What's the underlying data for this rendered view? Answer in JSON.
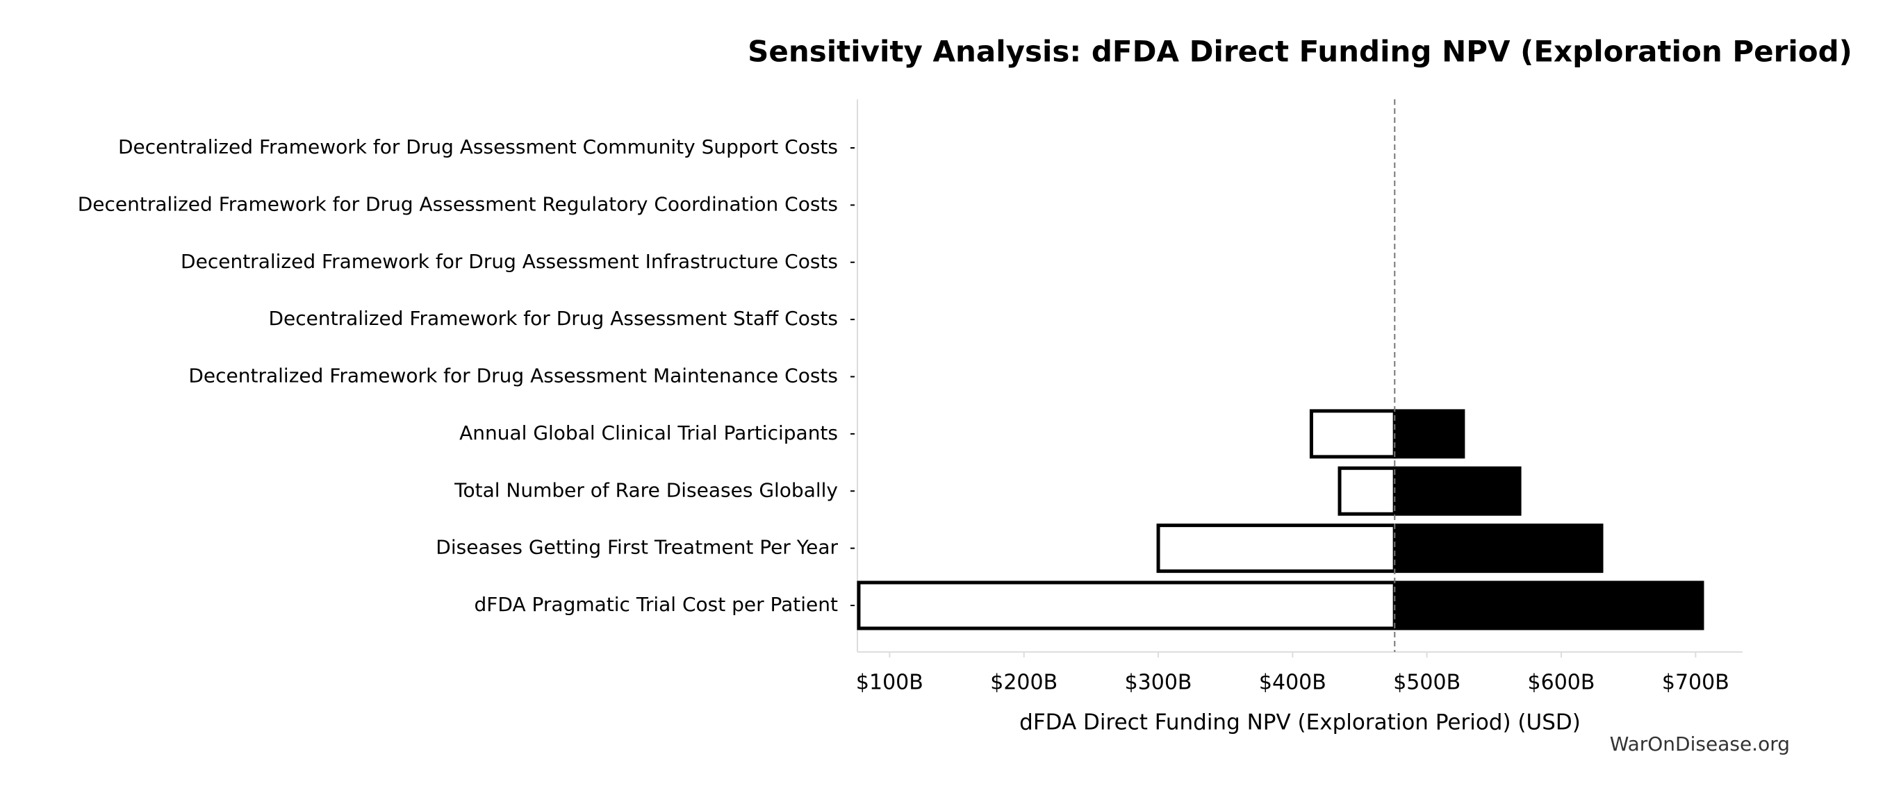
{
  "chart_data": {
    "type": "tornado",
    "title": "Sensitivity Analysis: dFDA Direct Funding NPV (Exploration Period)",
    "x_label": "dFDA Direct Funding NPV (Exploration Period) (USD)",
    "source": "WarOnDisease.org",
    "categories": [
      "Decentralized Framework for Drug Assessment Community Support Costs",
      "Decentralized Framework for Drug Assessment Regulatory Coordination Costs",
      "Decentralized Framework for Drug Assessment Infrastructure Costs",
      "Decentralized Framework for Drug Assessment Staff Costs",
      "Decentralized Framework for Drug Assessment Maintenance Costs",
      "Annual Global Clinical Trial Participants",
      "Total Number of Rare Diseases Globally",
      "Diseases Getting First Treatment Per Year",
      "dFDA Pragmatic Trial Cost per Patient"
    ],
    "low_values": [
      476,
      476,
      476,
      476,
      476,
      414,
      435,
      300,
      77
    ],
    "high_values": [
      476,
      476,
      476,
      476,
      476,
      527,
      569,
      630,
      705
    ],
    "baseline": 476,
    "low_color": "#ffffff",
    "high_color": "#000000",
    "edge_color": "#000000",
    "xlim": [
      76,
      735
    ],
    "xticks": [
      {
        "value": 100,
        "label": "$100B"
      },
      {
        "value": 200,
        "label": "$200B"
      },
      {
        "value": 300,
        "label": "$300B"
      },
      {
        "value": 400,
        "label": "$400B"
      },
      {
        "value": 500,
        "label": "$500B"
      },
      {
        "value": 600,
        "label": "$600B"
      },
      {
        "value": 700,
        "label": "$700B"
      }
    ]
  }
}
